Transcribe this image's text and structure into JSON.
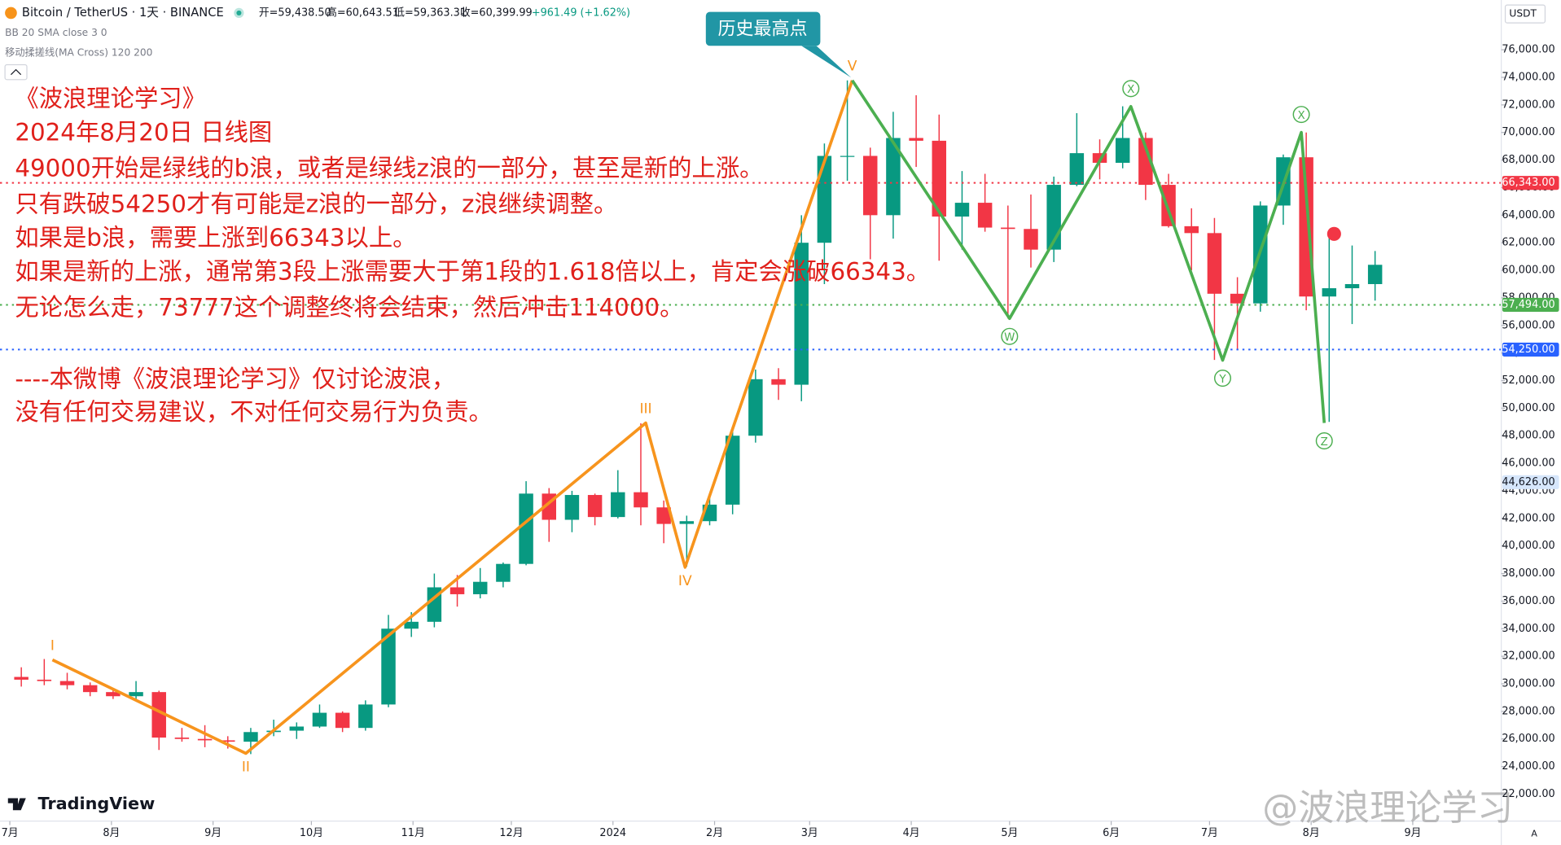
{
  "chart_data": {
    "type": "candlestick",
    "title": "Bitcoin / TetherUS · 1天 · BINANCE",
    "header_stats": [
      "开=59,438.50",
      "高=60,643.51",
      "低=59,363.31",
      "收=60,399.99",
      "+961.49 (+1.62%)"
    ],
    "indicators": [
      "BB 20 SMA close 3 0",
      "移动揉搓线(MA Cross) 120 200"
    ],
    "annotations": [
      "《波浪理论学习》",
      "2024年8月20日 日线图",
      "49000开始是绿线的b浪，或者是绿线z浪的一部分，甚至是新的上涨。",
      "只有跌破54250才有可能是z浪的一部分，z浪继续调整。",
      "如果是b浪，需要上涨到66343以上。",
      "如果是新的上涨，通常第3段上涨需要大于第1段的1.618倍以上，肯定会涨破66343。",
      "无论怎么走，73777这个调整终将会结束，然后冲击114000。",
      "----本微博《波浪理论学习》仅讨论波浪，",
      "没有任何交易建议，不对任何交易行为负责。"
    ],
    "callout": "历史最高点",
    "currency": "USDT",
    "branding": "TradingView",
    "watermark": "@波浪理论学习",
    "scale_mode": "A",
    "up_color": "#089981",
    "down_color": "#f23645",
    "xlim": [
      -3,
      455
    ],
    "ylim": [
      20040,
      79610
    ],
    "xticks": [
      {
        "value": 0,
        "label": "7月"
      },
      {
        "value": 31,
        "label": "8月"
      },
      {
        "value": 62,
        "label": "9月"
      },
      {
        "value": 92,
        "label": "10月"
      },
      {
        "value": 123,
        "label": "11月"
      },
      {
        "value": 153,
        "label": "12月"
      },
      {
        "value": 184,
        "label": "2024"
      },
      {
        "value": 215,
        "label": "2月"
      },
      {
        "value": 244,
        "label": "3月"
      },
      {
        "value": 275,
        "label": "4月"
      },
      {
        "value": 305,
        "label": "5月"
      },
      {
        "value": 336,
        "label": "6月"
      },
      {
        "value": 366,
        "label": "7月"
      },
      {
        "value": 397,
        "label": "8月"
      },
      {
        "value": 428,
        "label": "9月"
      }
    ],
    "yticks": [
      {
        "value": 22000,
        "label": "22,000.00"
      },
      {
        "value": 24000,
        "label": "24,000.00"
      },
      {
        "value": 26000,
        "label": "26,000.00"
      },
      {
        "value": 28000,
        "label": "28,000.00"
      },
      {
        "value": 30000,
        "label": "30,000.00"
      },
      {
        "value": 32000,
        "label": "32,000.00"
      },
      {
        "value": 34000,
        "label": "34,000.00"
      },
      {
        "value": 36000,
        "label": "36,000.00"
      },
      {
        "value": 38000,
        "label": "38,000.00"
      },
      {
        "value": 40000,
        "label": "40,000.00"
      },
      {
        "value": 42000,
        "label": "42,000.00"
      },
      {
        "value": 44000,
        "label": "44,000.00"
      },
      {
        "value": 46000,
        "label": "46,000.00"
      },
      {
        "value": 48000,
        "label": "48,000.00"
      },
      {
        "value": 50000,
        "label": "50,000.00"
      },
      {
        "value": 52000,
        "label": "52,000.00"
      },
      {
        "value": 54000,
        "label": "54,000.00"
      },
      {
        "value": 56000,
        "label": "56,000.00"
      },
      {
        "value": 58000,
        "label": "58,000.00"
      },
      {
        "value": 60000,
        "label": "60,000.00"
      },
      {
        "value": 62000,
        "label": "62,000.00"
      },
      {
        "value": 64000,
        "label": "64,000.00"
      },
      {
        "value": 66000,
        "label": "66,000.00"
      },
      {
        "value": 68000,
        "label": "68,000.00"
      },
      {
        "value": 70000,
        "label": "70,000.00"
      },
      {
        "value": 72000,
        "label": "72,000.00"
      },
      {
        "value": 74000,
        "label": "74,000.00"
      },
      {
        "value": 76000,
        "label": "76,000.00"
      }
    ],
    "candles": {
      "x": [
        0,
        7,
        14,
        21,
        28,
        35,
        42,
        49,
        56,
        63,
        70,
        77,
        84,
        91,
        98,
        105,
        112,
        119,
        126,
        133,
        140,
        147,
        154,
        161,
        168,
        175,
        182,
        189,
        196,
        203,
        210,
        217,
        224,
        231,
        238,
        245,
        252,
        259,
        266,
        273,
        280,
        287,
        294,
        301,
        308,
        315,
        322,
        329,
        336,
        343,
        350,
        357,
        364,
        371,
        378,
        385,
        392,
        399,
        406,
        413
      ],
      "open": [
        30500,
        30300,
        30200,
        29900,
        29400,
        29100,
        29400,
        26100,
        26000,
        25900,
        25800,
        26500,
        26600,
        26900,
        27900,
        26800,
        28500,
        34000,
        34500,
        37000,
        36500,
        37400,
        38700,
        43800,
        41900,
        43700,
        42100,
        43900,
        42800,
        41600,
        41800,
        43000,
        48000,
        52100,
        51700,
        62000,
        68300,
        68300,
        64000,
        69600,
        69400,
        63900,
        64900,
        63100,
        63000,
        61500,
        66200,
        68500,
        67800,
        69600,
        66200,
        63200,
        62700,
        58300,
        57600,
        64700,
        68200,
        58100,
        58700,
        59000
      ],
      "high": [
        31200,
        31800,
        30800,
        30100,
        29600,
        30200,
        29500,
        26800,
        27000,
        26200,
        26800,
        27400,
        27200,
        28500,
        28000,
        28800,
        35000,
        35200,
        38000,
        37900,
        38400,
        38800,
        44700,
        44200,
        44000,
        43800,
        45500,
        48900,
        43300,
        42200,
        43800,
        48500,
        52800,
        52900,
        64000,
        69200,
        73777,
        68900,
        71500,
        72700,
        71300,
        67200,
        67000,
        64700,
        65500,
        66800,
        71400,
        69500,
        71900,
        70000,
        67000,
        64500,
        63800,
        59500,
        65000,
        68400,
        70000,
        62700,
        61800,
        61400
      ],
      "low": [
        29800,
        29900,
        29600,
        29100,
        28900,
        28800,
        25200,
        25800,
        25400,
        25300,
        24900,
        26200,
        26000,
        26800,
        26500,
        26600,
        28300,
        33400,
        34100,
        35600,
        36200,
        37000,
        38600,
        40300,
        41000,
        41500,
        42000,
        41500,
        40200,
        38500,
        41500,
        42300,
        47500,
        50600,
        50500,
        59000,
        66500,
        60800,
        62300,
        67500,
        60700,
        61500,
        62800,
        56500,
        60200,
        60600,
        66100,
        66600,
        67400,
        65100,
        63100,
        60000,
        53500,
        54300,
        57000,
        63300,
        57100,
        49000,
        56100,
        57800
      ],
      "close": [
        30300,
        30200,
        29900,
        29400,
        29100,
        29400,
        26100,
        26000,
        25900,
        25800,
        26500,
        26600,
        26900,
        27900,
        26800,
        28500,
        34000,
        34500,
        37000,
        36500,
        37400,
        38700,
        43800,
        41900,
        43700,
        42100,
        43900,
        42800,
        41600,
        41800,
        43000,
        48000,
        52100,
        51700,
        62000,
        68300,
        68300,
        64000,
        69600,
        69400,
        63900,
        64900,
        63100,
        63000,
        61500,
        66200,
        68500,
        67800,
        69600,
        66200,
        63200,
        62700,
        58300,
        57600,
        64700,
        68200,
        58100,
        58700,
        59000,
        60400
      ]
    },
    "waves": [
      {
        "color": "#f7941d",
        "x": [
          13,
          72,
          194,
          206,
          257
        ],
        "values": [
          31740,
          24955,
          48925,
          38456,
          73777
        ],
        "labels": [
          "I",
          "II",
          "III",
          "IV",
          "V"
        ],
        "label_style": "plain"
      },
      {
        "color": "#4caf50",
        "x": [
          257,
          305,
          342,
          370,
          394,
          401
        ],
        "values": [
          73777,
          56506,
          71885,
          53474,
          70007,
          48925
        ],
        "labels": [
          null,
          "W",
          "X",
          "Y",
          "X",
          "Z"
        ],
        "label_style": "circled"
      }
    ],
    "price_lines": [
      {
        "value": 66343,
        "label": "66,343.00",
        "color": "#f23645"
      },
      {
        "value": 57494,
        "label": "57,494.00",
        "color": "#4caf50"
      },
      {
        "value": 54250,
        "label": "54,250.00",
        "color": "#2962ff"
      }
    ],
    "price_markers": [
      {
        "value": 44626,
        "label": "44,626.00",
        "color": "#d6e6fb"
      }
    ],
    "point_marker": {
      "x": 404,
      "value": 62643,
      "color": "#f23645"
    }
  }
}
